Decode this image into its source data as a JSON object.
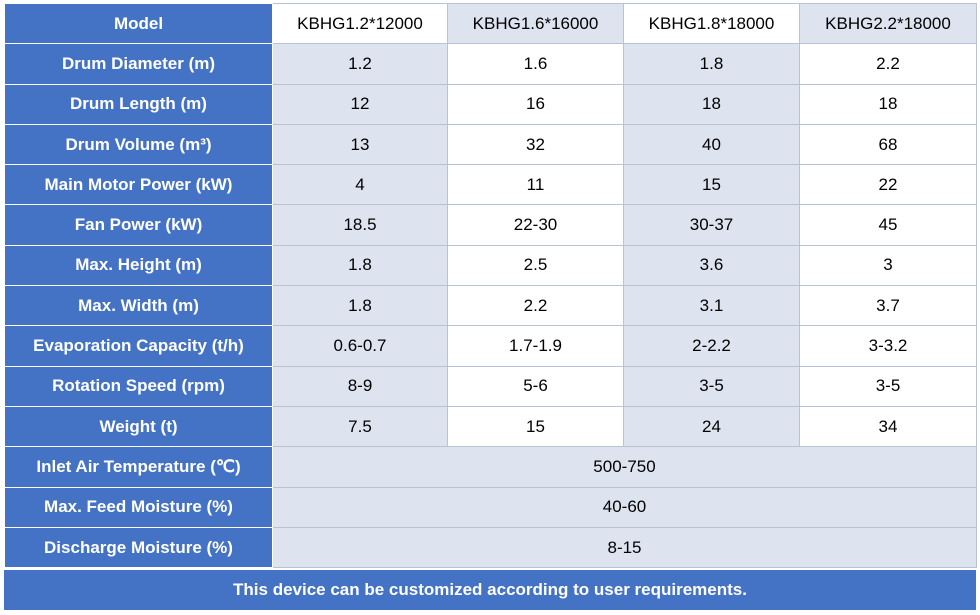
{
  "header": {
    "label": "Model",
    "models": [
      "KBHG1.2*12000",
      "KBHG1.6*16000",
      "KBHG1.8*18000",
      "KBHG2.2*18000"
    ]
  },
  "rows": [
    {
      "label": "Drum Diameter (m)",
      "values": [
        "1.2",
        "1.6",
        "1.8",
        "2.2"
      ]
    },
    {
      "label": "Drum Length (m)",
      "values": [
        "12",
        "16",
        "18",
        "18"
      ]
    },
    {
      "label": "Drum Volume (m³)",
      "values": [
        "13",
        "32",
        "40",
        "68"
      ]
    },
    {
      "label": "Main Motor Power (kW)",
      "values": [
        "4",
        "11",
        "15",
        "22"
      ]
    },
    {
      "label": "Fan Power (kW)",
      "values": [
        "18.5",
        "22-30",
        "30-37",
        "45"
      ]
    },
    {
      "label": "Max. Height (m)",
      "values": [
        "1.8",
        "2.5",
        "3.6",
        "3"
      ]
    },
    {
      "label": "Max. Width (m)",
      "values": [
        "1.8",
        "2.2",
        "3.1",
        "3.7"
      ]
    },
    {
      "label": "Evaporation Capacity (t/h)",
      "values": [
        "0.6-0.7",
        "1.7-1.9",
        "2-2.2",
        "3-3.2"
      ]
    },
    {
      "label": "Rotation Speed (rpm)",
      "values": [
        "8-9",
        "5-6",
        "3-5",
        "3-5"
      ]
    },
    {
      "label": "Weight (t)",
      "values": [
        "7.5",
        "15",
        "24",
        "34"
      ]
    }
  ],
  "shared_rows": [
    {
      "label": "Inlet Air Temperature (℃)",
      "value": "500-750"
    },
    {
      "label": "Max. Feed Moisture (%)",
      "value": "40-60"
    },
    {
      "label": "Discharge Moisture (%)",
      "value": "8-15"
    }
  ],
  "footer": "This device can be customized according to user requirements.",
  "colors": {
    "header_blue": "#4472c4",
    "alt_cell": "#dde4f0",
    "white": "#ffffff"
  }
}
